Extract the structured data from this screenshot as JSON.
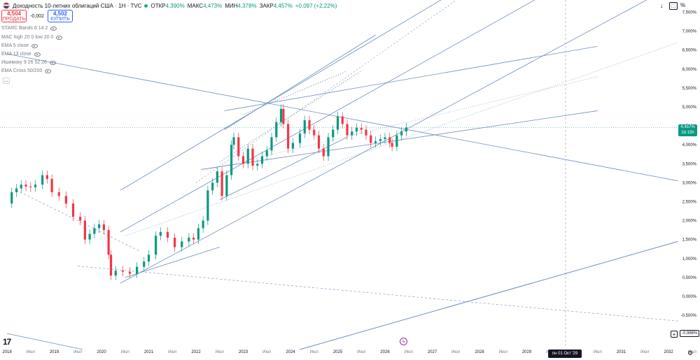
{
  "header": {
    "title": "Доходность 10-летних облигаций США · 1Н · TVC",
    "ohlc": [
      {
        "label": "ОТКР",
        "value": "4,390%"
      },
      {
        "label": "МАКС",
        "value": "4,473%"
      },
      {
        "label": "МИН",
        "value": "4,378%"
      },
      {
        "label": "ЗАКР",
        "value": "4,457%"
      }
    ],
    "change": "+0,097 (+2,22%)"
  },
  "trade": {
    "sell_price": "4,504",
    "sell_label": "ПРОДАТЬ",
    "spread": "-0,002",
    "buy_price": "4,502",
    "buy_label": "КУПИТЬ"
  },
  "indicators": [
    "STARC Bands 6 14 2",
    "MAC high 20 0 low 20 0",
    "EMA 5 close",
    "EMA 13 close",
    "Ишимоку 9 26 52 26",
    "EMA Cross 50/200"
  ],
  "price_tag": {
    "value": "4,457%",
    "countdown": "2d 15h"
  },
  "crosshair_label": "пн 01 Окт '29",
  "neg_label": "-0,986%",
  "unit_label": "%",
  "logo_text": "17",
  "colors": {
    "up": "#089981",
    "down": "#f23645",
    "trend": "#6c8ebf",
    "accent": "#2962ff"
  },
  "chart_data": {
    "type": "candlestick",
    "y_unit": "%",
    "ylim": [
      -0.986,
      7.9
    ],
    "y_ticks": [
      "7,500%",
      "7,000%",
      "6,500%",
      "6,000%",
      "5,500%",
      "5,000%",
      "4,500%",
      "4,000%",
      "3,500%",
      "3,000%",
      "2,500%",
      "2,000%",
      "1,500%",
      "1,000%",
      "0,500%",
      "0,000%",
      "-0,500%"
    ],
    "x_ticks": [
      "2018",
      "Июл",
      "2019",
      "Июл",
      "2020",
      "Июл",
      "2021",
      "Июл",
      "2022",
      "Июл",
      "2023",
      "Июл",
      "2024",
      "Июл",
      "2025",
      "Июл",
      "2026",
      "Июл",
      "2027",
      "Июл",
      "2028",
      "Июл",
      "2029",
      "Июл",
      "2030",
      "Июл",
      "2031",
      "Июл",
      "2032",
      "Июл"
    ],
    "series": [
      {
        "t": 2018.0,
        "v": 2.45
      },
      {
        "t": 2018.1,
        "v": 2.75
      },
      {
        "t": 2018.2,
        "v": 2.85
      },
      {
        "t": 2018.3,
        "v": 2.95
      },
      {
        "t": 2018.4,
        "v": 2.9
      },
      {
        "t": 2018.5,
        "v": 2.88
      },
      {
        "t": 2018.6,
        "v": 2.95
      },
      {
        "t": 2018.75,
        "v": 3.2
      },
      {
        "t": 2018.85,
        "v": 3.1
      },
      {
        "t": 2018.95,
        "v": 2.75
      },
      {
        "t": 2019.1,
        "v": 2.65
      },
      {
        "t": 2019.25,
        "v": 2.45
      },
      {
        "t": 2019.4,
        "v": 2.1
      },
      {
        "t": 2019.55,
        "v": 2.0
      },
      {
        "t": 2019.65,
        "v": 1.5
      },
      {
        "t": 2019.75,
        "v": 1.65
      },
      {
        "t": 2019.85,
        "v": 1.8
      },
      {
        "t": 2019.95,
        "v": 1.9
      },
      {
        "t": 2020.05,
        "v": 1.75
      },
      {
        "t": 2020.15,
        "v": 1.1
      },
      {
        "t": 2020.2,
        "v": 0.55
      },
      {
        "t": 2020.3,
        "v": 0.68
      },
      {
        "t": 2020.45,
        "v": 0.65
      },
      {
        "t": 2020.6,
        "v": 0.6
      },
      {
        "t": 2020.75,
        "v": 0.78
      },
      {
        "t": 2020.9,
        "v": 0.92
      },
      {
        "t": 2021.0,
        "v": 1.1
      },
      {
        "t": 2021.15,
        "v": 1.6
      },
      {
        "t": 2021.25,
        "v": 1.7
      },
      {
        "t": 2021.4,
        "v": 1.55
      },
      {
        "t": 2021.55,
        "v": 1.3
      },
      {
        "t": 2021.7,
        "v": 1.45
      },
      {
        "t": 2021.85,
        "v": 1.55
      },
      {
        "t": 2021.95,
        "v": 1.5
      },
      {
        "t": 2022.05,
        "v": 1.8
      },
      {
        "t": 2022.15,
        "v": 2.0
      },
      {
        "t": 2022.25,
        "v": 2.8
      },
      {
        "t": 2022.35,
        "v": 3.0
      },
      {
        "t": 2022.45,
        "v": 3.3
      },
      {
        "t": 2022.55,
        "v": 2.65
      },
      {
        "t": 2022.65,
        "v": 3.2
      },
      {
        "t": 2022.75,
        "v": 4.0
      },
      {
        "t": 2022.8,
        "v": 4.2
      },
      {
        "t": 2022.9,
        "v": 3.7
      },
      {
        "t": 2023.0,
        "v": 3.5
      },
      {
        "t": 2023.1,
        "v": 3.9
      },
      {
        "t": 2023.2,
        "v": 3.45
      },
      {
        "t": 2023.3,
        "v": 3.5
      },
      {
        "t": 2023.4,
        "v": 3.7
      },
      {
        "t": 2023.5,
        "v": 3.85
      },
      {
        "t": 2023.6,
        "v": 4.2
      },
      {
        "t": 2023.7,
        "v": 4.6
      },
      {
        "t": 2023.8,
        "v": 4.95
      },
      {
        "t": 2023.85,
        "v": 4.55
      },
      {
        "t": 2023.95,
        "v": 3.9
      },
      {
        "t": 2024.05,
        "v": 4.05
      },
      {
        "t": 2024.2,
        "v": 4.3
      },
      {
        "t": 2024.3,
        "v": 4.65
      },
      {
        "t": 2024.4,
        "v": 4.4
      },
      {
        "t": 2024.5,
        "v": 4.25
      },
      {
        "t": 2024.6,
        "v": 3.9
      },
      {
        "t": 2024.7,
        "v": 3.7
      },
      {
        "t": 2024.8,
        "v": 4.2
      },
      {
        "t": 2024.9,
        "v": 4.4
      },
      {
        "t": 2025.0,
        "v": 4.75
      },
      {
        "t": 2025.1,
        "v": 4.55
      },
      {
        "t": 2025.2,
        "v": 4.25
      },
      {
        "t": 2025.3,
        "v": 4.35
      },
      {
        "t": 2025.4,
        "v": 4.45
      },
      {
        "t": 2025.5,
        "v": 4.4
      },
      {
        "t": 2025.6,
        "v": 4.25
      },
      {
        "t": 2025.7,
        "v": 4.05
      },
      {
        "t": 2025.8,
        "v": 4.1
      },
      {
        "t": 2025.9,
        "v": 4.15
      },
      {
        "t": 2026.0,
        "v": 4.2
      },
      {
        "t": 2026.1,
        "v": 4.05
      },
      {
        "t": 2026.15,
        "v": 3.95
      },
      {
        "t": 2026.25,
        "v": 4.25
      },
      {
        "t": 2026.35,
        "v": 4.35
      },
      {
        "t": 2026.45,
        "v": 4.457
      }
    ]
  }
}
